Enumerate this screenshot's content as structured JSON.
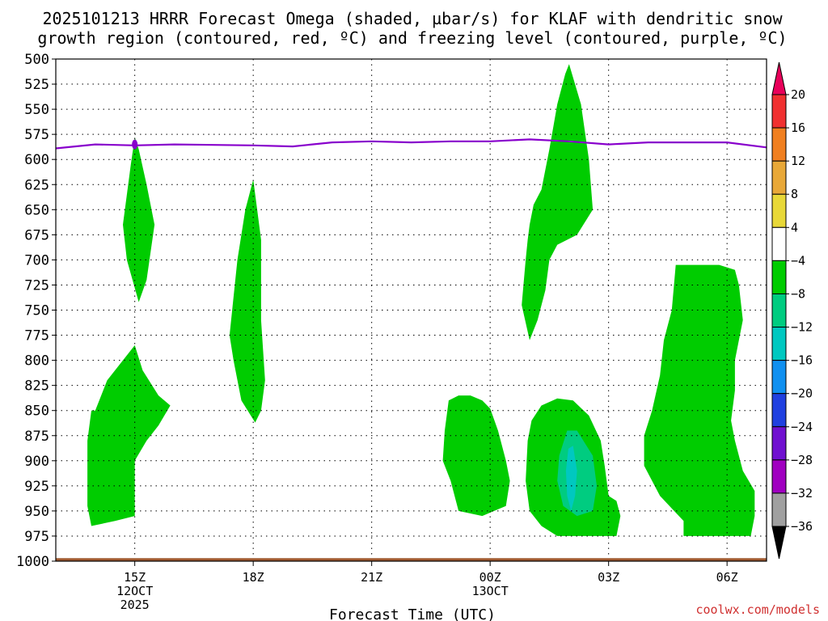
{
  "title": {
    "line1": "2025101213 HRRR Forecast Omega (shaded, µbar/s) for KLAF with dendritic snow",
    "line2": "growth region (contoured, red, ºC) and freezing level (contoured, purple, ºC)"
  },
  "credit": "coolwx.com/models",
  "chart_data": {
    "type": "area",
    "title": "2025101213 HRRR Forecast Omega (shaded, µbar/s) for KLAF with dendritic snow growth region (contoured, red, ºC) and freezing level (contoured, purple, ºC)",
    "xlabel": "Forecast Time (UTC)",
    "ylabel": "",
    "y_axis": {
      "reversed": true,
      "ylim": [
        1000,
        500
      ],
      "ticks": [
        500,
        525,
        550,
        575,
        600,
        625,
        650,
        675,
        700,
        725,
        750,
        775,
        800,
        825,
        850,
        875,
        900,
        925,
        950,
        975,
        1000
      ]
    },
    "x_axis": {
      "xlim_hours_from_13Z": [
        0,
        18
      ],
      "ticks": [
        {
          "hour": 2,
          "label": "15Z",
          "sub1": "12OCT",
          "sub2": "2025"
        },
        {
          "hour": 5,
          "label": "18Z",
          "sub1": "",
          "sub2": ""
        },
        {
          "hour": 8,
          "label": "21Z",
          "sub1": "",
          "sub2": ""
        },
        {
          "hour": 11,
          "label": "00Z",
          "sub1": "13OCT",
          "sub2": ""
        },
        {
          "hour": 14,
          "label": "03Z",
          "sub1": "",
          "sub2": ""
        },
        {
          "hour": 17,
          "label": "06Z",
          "sub1": "",
          "sub2": ""
        }
      ]
    },
    "grid": true,
    "colorbar": {
      "levels": [
        "20",
        "16",
        "12",
        "8",
        "4",
        "−4",
        "−8",
        "−12",
        "−16",
        "−20",
        "−24",
        "−28",
        "−32",
        "−36"
      ],
      "colors": [
        "#e8005a",
        "#f03030",
        "#f07f20",
        "#e8a838",
        "#e8d838",
        "#ffffff",
        "#00cc00",
        "#00cc80",
        "#00c8c0",
        "#1090f0",
        "#2040e0",
        "#7010d0",
        "#a000c0",
        "#a0a0a0",
        "#000000"
      ]
    },
    "freezing_level": {
      "color": "#8800cc",
      "points": [
        [
          0,
          589
        ],
        [
          1,
          585
        ],
        [
          2,
          586
        ],
        [
          3,
          585
        ],
        [
          5,
          586
        ],
        [
          6,
          587
        ],
        [
          7,
          583
        ],
        [
          8,
          582
        ],
        [
          9,
          583
        ],
        [
          10,
          582
        ],
        [
          11,
          582
        ],
        [
          12,
          580
        ],
        [
          13,
          582
        ],
        [
          14,
          585
        ],
        [
          15,
          583
        ],
        [
          16,
          583
        ],
        [
          17,
          583
        ],
        [
          18,
          588
        ]
      ]
    },
    "omega_regions": [
      {
        "level": "-4 to -8",
        "color": "#00cc00",
        "points": [
          [
            2.0,
            578
          ],
          [
            2.1,
            590
          ],
          [
            2.3,
            625
          ],
          [
            2.5,
            665
          ],
          [
            2.3,
            720
          ],
          [
            2.1,
            742
          ],
          [
            1.8,
            700
          ],
          [
            1.7,
            665
          ],
          [
            1.9,
            605
          ]
        ]
      },
      {
        "level": "-4 to -8",
        "color": "#00cc00",
        "points": [
          [
            1.0,
            850
          ],
          [
            1.3,
            820
          ],
          [
            1.7,
            800
          ],
          [
            2.0,
            785
          ],
          [
            2.2,
            810
          ],
          [
            2.6,
            835
          ],
          [
            2.9,
            845
          ],
          [
            2.6,
            865
          ],
          [
            2.3,
            880
          ],
          [
            2.0,
            900
          ],
          [
            2.0,
            955
          ],
          [
            1.5,
            960
          ],
          [
            0.9,
            965
          ],
          [
            0.8,
            945
          ],
          [
            0.8,
            880
          ],
          [
            0.9,
            850
          ]
        ]
      },
      {
        "level": "-4 to -8",
        "color": "#00cc00",
        "points": [
          [
            5.0,
            620
          ],
          [
            5.2,
            680
          ],
          [
            5.2,
            760
          ],
          [
            5.3,
            820
          ],
          [
            5.2,
            850
          ],
          [
            5.05,
            862
          ],
          [
            4.7,
            840
          ],
          [
            4.5,
            800
          ],
          [
            4.4,
            775
          ],
          [
            4.6,
            700
          ],
          [
            4.8,
            650
          ]
        ]
      },
      {
        "level": "-4 to -8",
        "color": "#00cc00",
        "points": [
          [
            10.5,
            835
          ],
          [
            10.8,
            840
          ],
          [
            11.0,
            848
          ],
          [
            11.2,
            870
          ],
          [
            11.4,
            900
          ],
          [
            11.5,
            920
          ],
          [
            11.4,
            945
          ],
          [
            11.1,
            950
          ],
          [
            10.8,
            955
          ],
          [
            10.2,
            950
          ],
          [
            10.0,
            920
          ],
          [
            9.8,
            900
          ],
          [
            9.85,
            870
          ],
          [
            9.95,
            840
          ],
          [
            10.2,
            835
          ]
        ]
      },
      {
        "level": "-4 to -8",
        "color": "#00cc00",
        "points": [
          [
            13.0,
            505
          ],
          [
            13.3,
            545
          ],
          [
            13.5,
            600
          ],
          [
            13.6,
            650
          ],
          [
            13.2,
            675
          ],
          [
            12.7,
            685
          ],
          [
            12.5,
            700
          ],
          [
            12.4,
            730
          ],
          [
            12.2,
            760
          ],
          [
            12.0,
            780
          ],
          [
            11.8,
            745
          ],
          [
            11.9,
            700
          ],
          [
            11.95,
            680
          ],
          [
            12.0,
            665
          ],
          [
            12.1,
            645
          ],
          [
            12.3,
            630
          ],
          [
            12.5,
            590
          ],
          [
            12.7,
            545
          ],
          [
            12.9,
            515
          ]
        ]
      },
      {
        "level": "-4 to -8",
        "color": "#00cc00",
        "points": [
          [
            12.3,
            845
          ],
          [
            12.7,
            838
          ],
          [
            13.1,
            840
          ],
          [
            13.5,
            855
          ],
          [
            13.8,
            880
          ],
          [
            13.9,
            905
          ],
          [
            14.0,
            935
          ],
          [
            14.2,
            940
          ],
          [
            14.3,
            955
          ],
          [
            14.2,
            975
          ],
          [
            13.5,
            975
          ],
          [
            12.7,
            975
          ],
          [
            12.3,
            965
          ],
          [
            12.0,
            950
          ],
          [
            11.9,
            920
          ],
          [
            11.95,
            880
          ],
          [
            12.05,
            860
          ]
        ]
      },
      {
        "level": "-4 to -8",
        "color": "#00cc00",
        "points": [
          [
            15.7,
            705
          ],
          [
            16.5,
            705
          ],
          [
            16.5,
            705
          ],
          [
            16.5,
            705
          ],
          [
            16.6,
            705
          ],
          [
            16.6,
            705
          ],
          [
            16.4,
            705
          ],
          [
            16.25,
            705
          ],
          [
            16.1,
            705
          ],
          [
            15.7,
            705
          ],
          [
            15.9,
            705
          ],
          [
            16.4,
            705
          ],
          [
            16.8,
            705
          ],
          [
            17.2,
            710
          ],
          [
            17.3,
            725
          ],
          [
            17.4,
            760
          ],
          [
            17.2,
            800
          ],
          [
            17.2,
            830
          ],
          [
            17.1,
            860
          ],
          [
            17.2,
            880
          ],
          [
            17.4,
            910
          ],
          [
            17.7,
            930
          ],
          [
            17.7,
            955
          ],
          [
            17.6,
            975
          ],
          [
            16.8,
            975
          ],
          [
            15.9,
            975
          ],
          [
            15.9,
            960
          ],
          [
            15.3,
            935
          ],
          [
            14.9,
            905
          ],
          [
            14.9,
            875
          ],
          [
            15.1,
            850
          ],
          [
            15.3,
            815
          ],
          [
            15.4,
            780
          ],
          [
            15.6,
            750
          ]
        ]
      },
      {
        "level": "-8 to -12",
        "color": "#00cc80",
        "points": [
          [
            13.2,
            870
          ],
          [
            13.6,
            895
          ],
          [
            13.7,
            925
          ],
          [
            13.6,
            950
          ],
          [
            13.2,
            955
          ],
          [
            12.85,
            945
          ],
          [
            12.7,
            920
          ],
          [
            12.75,
            895
          ],
          [
            12.95,
            870
          ]
        ]
      },
      {
        "level": "-12 to -16",
        "color": "#00c8c0",
        "points": [
          [
            13.1,
            885
          ],
          [
            13.2,
            910
          ],
          [
            13.15,
            935
          ],
          [
            13.05,
            950
          ],
          [
            12.95,
            935
          ],
          [
            12.92,
            910
          ],
          [
            12.98,
            888
          ]
        ]
      }
    ],
    "dendritic_region": [],
    "ground": {
      "color": "#a05a30",
      "top_hPa": 997
    }
  }
}
